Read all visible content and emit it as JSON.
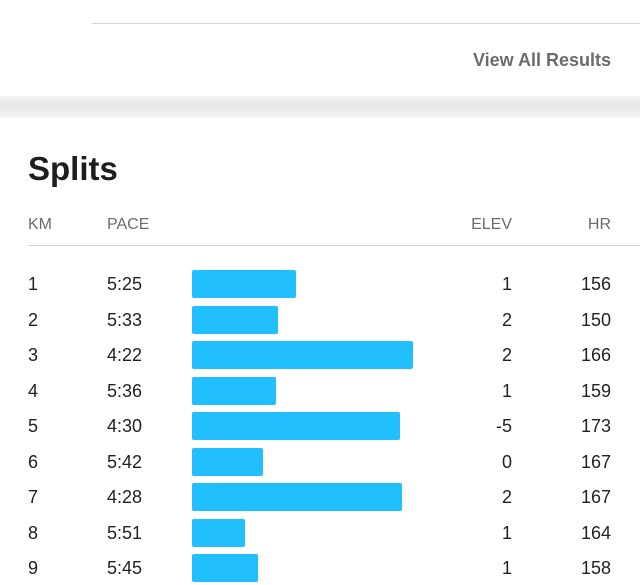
{
  "view_all_label": "View All Results",
  "splits": {
    "title": "Splits",
    "headers": {
      "km": "KM",
      "pace": "PACE",
      "elev": "ELEV",
      "hr": "HR"
    },
    "bar_color": "#22bfff",
    "rows": [
      {
        "km": "1",
        "pace": "5:25",
        "elev": "1",
        "hr": "156",
        "bar": 0.47
      },
      {
        "km": "2",
        "pace": "5:33",
        "elev": "2",
        "hr": "150",
        "bar": 0.39
      },
      {
        "km": "3",
        "pace": "4:22",
        "elev": "2",
        "hr": "166",
        "bar": 1.0
      },
      {
        "km": "4",
        "pace": "5:36",
        "elev": "1",
        "hr": "159",
        "bar": 0.38
      },
      {
        "km": "5",
        "pace": "4:30",
        "elev": "-5",
        "hr": "173",
        "bar": 0.94
      },
      {
        "km": "6",
        "pace": "5:42",
        "elev": "0",
        "hr": "167",
        "bar": 0.32
      },
      {
        "km": "7",
        "pace": "4:28",
        "elev": "2",
        "hr": "167",
        "bar": 0.95
      },
      {
        "km": "8",
        "pace": "5:51",
        "elev": "1",
        "hr": "164",
        "bar": 0.24
      },
      {
        "km": "9",
        "pace": "5:45",
        "elev": "1",
        "hr": "158",
        "bar": 0.3
      }
    ]
  }
}
